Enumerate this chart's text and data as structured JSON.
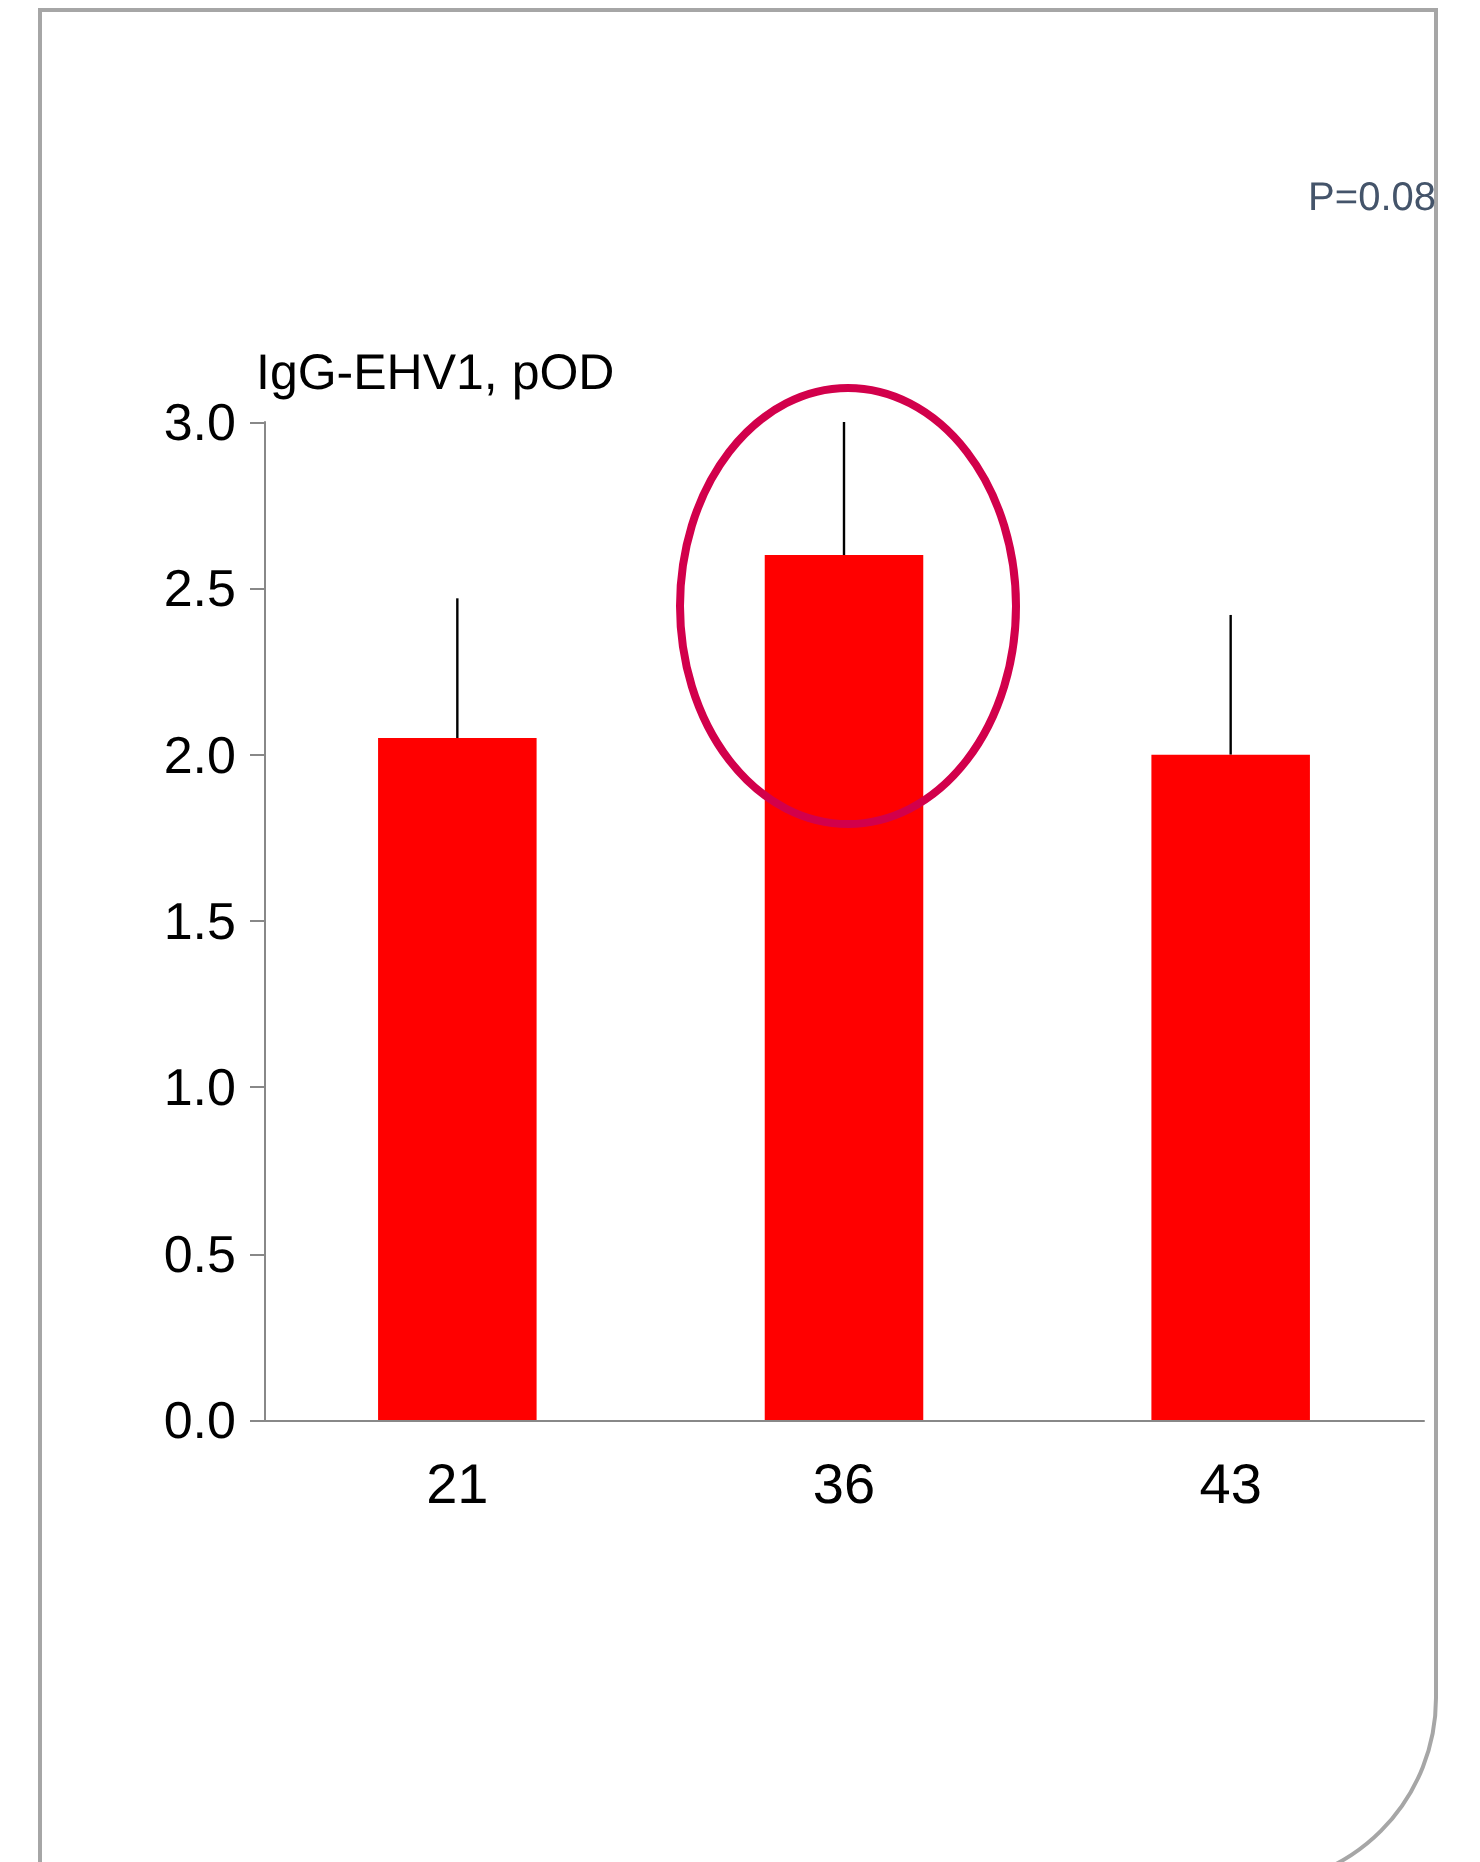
{
  "chart_data": {
    "type": "bar",
    "ylabel": "IgG-EHV1, pOD",
    "annotations": [
      "P=0.08"
    ],
    "categories": [
      "21",
      "36",
      "43"
    ],
    "values": [
      2.05,
      2.6,
      2.0
    ],
    "errors": [
      [
        2.05,
        2.47
      ],
      [
        2.6,
        3.0
      ],
      [
        2.0,
        2.42
      ]
    ],
    "color": "#ff0000",
    "ylim": [
      0,
      3
    ],
    "yticks": [
      {
        "value": 0,
        "label": "0.0"
      },
      0.5,
      {
        "value": 1,
        "label": "1.0"
      },
      1.5,
      {
        "value": 2,
        "label": "2.0"
      },
      2.5,
      {
        "value": 3,
        "label": "3.0"
      }
    ],
    "grid": false
  }
}
